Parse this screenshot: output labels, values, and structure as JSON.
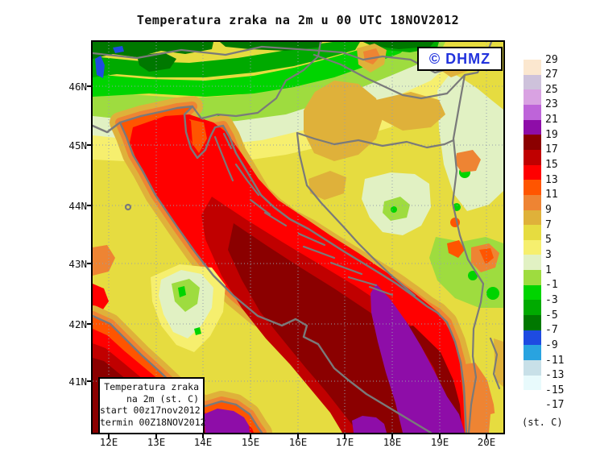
{
  "title": "Temperatura zraka na 2m u 00 UTC 18NOV2012",
  "branding": {
    "copyright_label": "© DHMZ",
    "color": "#2233dd"
  },
  "info_box": {
    "lines": [
      "Temperatura zraka",
      "na 2m (st. C)",
      "start 00z17nov2012",
      "termin 00Z18NOV2012"
    ]
  },
  "axes": {
    "x_ticks": [
      "12E",
      "13E",
      "14E",
      "15E",
      "16E",
      "17E",
      "18E",
      "19E",
      "20E"
    ],
    "y_ticks": [
      "46N",
      "45N",
      "44N",
      "43N",
      "42N",
      "41N"
    ]
  },
  "legend": {
    "unit_label": "(st. C)",
    "tick_labels": [
      "29",
      "27",
      "25",
      "23",
      "21",
      "19",
      "17",
      "15",
      "13",
      "11",
      "9",
      "7",
      "5",
      "3",
      "1",
      "-1",
      "-3",
      "-5",
      "-7",
      "-9",
      "-11",
      "-13",
      "-15",
      "-17"
    ],
    "band_colors": [
      "#fbe7cf",
      "#cec2db",
      "#d9a2e2",
      "#be64d9",
      "#8e0da8",
      "#8b0000",
      "#c00000",
      "#ff0000",
      "#ff5500",
      "#ee8433",
      "#dfb13a",
      "#e6dc40",
      "#f6ef6e",
      "#e1f1c3",
      "#9edc3f",
      "#00d400",
      "#00aa00",
      "#007800",
      "#1e4be1",
      "#29a3e0",
      "#c8e0e8",
      "#e8fafc",
      "#ffffff"
    ]
  },
  "palette": {
    "t27_29": "#fbe7cf",
    "t25_27": "#cec2db",
    "t23_25": "#d9a2e2",
    "t21_23": "#be64d9",
    "t19_21": "#8e0da8",
    "t17_19": "#8b0000",
    "t15_17": "#c00000",
    "t13_15": "#ff0000",
    "t11_13": "#ff5500",
    "t9_11": "#ee8433",
    "t7_9": "#dfb13a",
    "t5_7": "#e6dc40",
    "t3_5": "#f6ef6e",
    "t1_3": "#e1f1c3",
    "tm1_1": "#9edc3f",
    "tm3_m1": "#00d400",
    "tm5_m3": "#00aa00",
    "tm7_m5": "#007800",
    "tm9_m7": "#1e4be1",
    "border_gray": "#7a7a7a",
    "grid_gray": "#95a0ac"
  }
}
